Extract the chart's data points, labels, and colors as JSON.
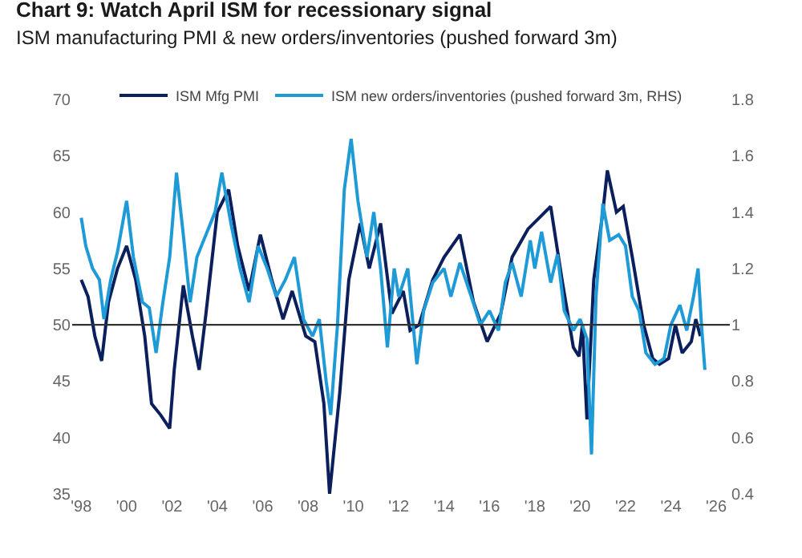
{
  "chart_data": {
    "type": "line",
    "title": "Chart 9: Watch April ISM for recessionary signal",
    "subtitle": "ISM manufacturing PMI & new orders/inventories (pushed forward 3m)",
    "series": [
      {
        "name": "ISM Mfg PMI",
        "color": "#0a1f5c",
        "x": [
          1998.0,
          1998.3,
          1998.6,
          1998.9,
          1999.2,
          1999.6,
          2000.0,
          2000.4,
          2000.8,
          2001.1,
          2001.5,
          2001.9,
          2002.1,
          2002.5,
          2002.9,
          2003.2,
          2003.5,
          2004.0,
          2004.5,
          2004.9,
          2005.4,
          2005.9,
          2006.4,
          2006.9,
          2007.3,
          2007.9,
          2008.3,
          2008.7,
          2008.95,
          2009.4,
          2009.8,
          2010.3,
          2010.7,
          2011.2,
          2011.7,
          2012.2,
          2012.5,
          2012.9,
          2013.5,
          2014.0,
          2014.7,
          2015.3,
          2015.9,
          2016.5,
          2017.0,
          2017.7,
          2018.2,
          2018.7,
          2019.2,
          2019.7,
          2019.95,
          2020.1,
          2020.3,
          2020.6,
          2021.0,
          2021.2,
          2021.6,
          2021.9,
          2022.3,
          2022.8,
          2023.2,
          2023.5,
          2023.9,
          2024.2,
          2024.5,
          2024.9,
          2025.1,
          2025.3
        ],
        "values": [
          54,
          52.5,
          49,
          46.8,
          52,
          55,
          57,
          54,
          49,
          43,
          42,
          40.8,
          46,
          53.5,
          49,
          46,
          51,
          60,
          62,
          57,
          53,
          58,
          54,
          50.5,
          53,
          49,
          48.5,
          43,
          35,
          44,
          54,
          59,
          55,
          59,
          51,
          53,
          49.5,
          50,
          54,
          56,
          58,
          52,
          48.5,
          51,
          56,
          58.5,
          59.5,
          60.5,
          54,
          48,
          47.2,
          50,
          41.6,
          54,
          60,
          63.7,
          60,
          60.5,
          56,
          50,
          47,
          46.5,
          47,
          50,
          47.5,
          48.5,
          50.5,
          49
        ]
      },
      {
        "name": "ISM new orders/inventories (pushed forward 3m, RHS)",
        "color": "#1e9bd7",
        "axis": "y2",
        "x": [
          1998.0,
          1998.2,
          1998.5,
          1998.8,
          1999.0,
          1999.3,
          1999.6,
          2000.0,
          2000.3,
          2000.7,
          2001.0,
          2001.3,
          2001.6,
          2001.9,
          2002.2,
          2002.5,
          2002.8,
          2003.1,
          2003.5,
          2003.9,
          2004.2,
          2004.6,
          2005.0,
          2005.4,
          2005.8,
          2006.2,
          2006.6,
          2007.0,
          2007.4,
          2007.8,
          2008.2,
          2008.5,
          2008.8,
          2009.0,
          2009.3,
          2009.6,
          2009.9,
          2010.2,
          2010.6,
          2010.9,
          2011.2,
          2011.5,
          2011.8,
          2012.0,
          2012.4,
          2012.8,
          2013.1,
          2013.5,
          2014.0,
          2014.3,
          2014.7,
          2015.2,
          2015.6,
          2016.0,
          2016.4,
          2016.7,
          2017.0,
          2017.4,
          2017.8,
          2018.0,
          2018.3,
          2018.7,
          2019.0,
          2019.3,
          2019.7,
          2020.0,
          2020.3,
          2020.5,
          2020.7,
          2021.0,
          2021.3,
          2021.7,
          2022.0,
          2022.3,
          2022.6,
          2022.9,
          2023.3,
          2023.7,
          2024.0,
          2024.4,
          2024.7,
          2025.0,
          2025.2,
          2025.35,
          2025.5
        ],
        "values": [
          1.38,
          1.28,
          1.2,
          1.16,
          1.02,
          1.16,
          1.26,
          1.44,
          1.24,
          1.08,
          1.06,
          0.9,
          1.08,
          1.24,
          1.54,
          1.32,
          1.08,
          1.24,
          1.32,
          1.4,
          1.54,
          1.36,
          1.2,
          1.08,
          1.28,
          1.2,
          1.1,
          1.16,
          1.24,
          1.02,
          0.96,
          1.02,
          0.8,
          0.68,
          1.0,
          1.48,
          1.66,
          1.44,
          1.24,
          1.4,
          1.2,
          0.92,
          1.2,
          1.1,
          1.2,
          0.86,
          1.05,
          1.15,
          1.2,
          1.1,
          1.22,
          1.1,
          1.0,
          1.05,
          0.98,
          1.15,
          1.22,
          1.1,
          1.3,
          1.2,
          1.33,
          1.15,
          1.25,
          1.05,
          0.98,
          1.02,
          0.95,
          0.54,
          1.1,
          1.43,
          1.3,
          1.32,
          1.28,
          1.1,
          1.05,
          0.9,
          0.86,
          0.88,
          1.0,
          1.07,
          0.98,
          1.1,
          1.2,
          1.0,
          0.84
        ]
      }
    ],
    "xlim": [
      1997.6,
      2026.6
    ],
    "xticks": [
      {
        "value": 1998,
        "label": "'98"
      },
      {
        "value": 2000,
        "label": "'00"
      },
      {
        "value": 2002,
        "label": "'02"
      },
      {
        "value": 2004,
        "label": "'04"
      },
      {
        "value": 2006,
        "label": "'06"
      },
      {
        "value": 2008,
        "label": "'08"
      },
      {
        "value": 2010,
        "label": "'10"
      },
      {
        "value": 2012,
        "label": "'12"
      },
      {
        "value": 2014,
        "label": "'14"
      },
      {
        "value": 2016,
        "label": "'16"
      },
      {
        "value": 2018,
        "label": "'18"
      },
      {
        "value": 2020,
        "label": "'20"
      },
      {
        "value": 2022,
        "label": "'22"
      },
      {
        "value": 2024,
        "label": "'24"
      },
      {
        "value": 2026,
        "label": "'26"
      }
    ],
    "ylim": [
      35,
      70
    ],
    "yticks": [
      35,
      40,
      45,
      50,
      55,
      60,
      65,
      70
    ],
    "y2lim": [
      0.4,
      1.8
    ],
    "y2ticks": [
      0.4,
      0.6,
      0.8,
      1,
      1.2,
      1.4,
      1.6,
      1.8
    ],
    "ref_lines": [
      {
        "axis": "y",
        "value": 50,
        "color": "#333333"
      }
    ],
    "grid": false,
    "legend": "top",
    "marker": "none",
    "line_style": "solid"
  }
}
